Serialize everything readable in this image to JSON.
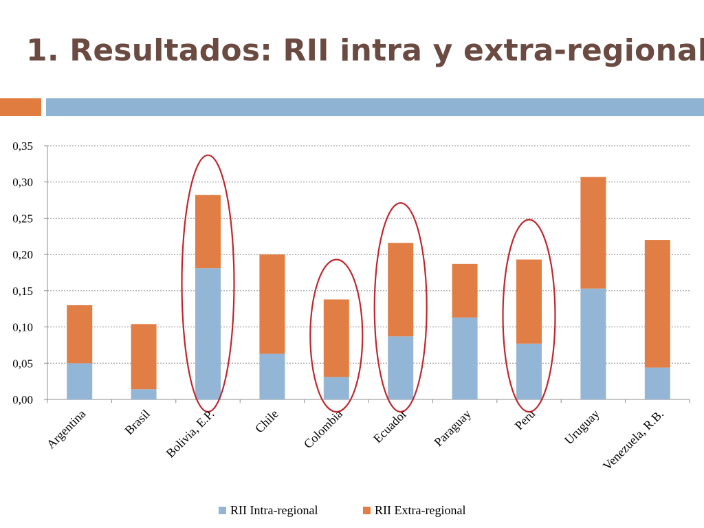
{
  "slide": {
    "title": "1. Resultados: RII intra y extra-regional"
  },
  "colors": {
    "title": "#6b4a42",
    "accent_orange": "#e07c40",
    "accent_blue": "#8fb3d3",
    "intra": "#94b6d6",
    "extra": "#e07e45",
    "highlight_ellipse": "#c0262c",
    "grid": "#8c8c8c"
  },
  "chart_data": {
    "type": "bar",
    "stacked": true,
    "categories": [
      "Argentina",
      "Brasil",
      "Bolivia, E.P.",
      "Chile",
      "Colombia",
      "Ecuador",
      "Paraguay",
      "Peru",
      "Uruguay",
      "Venezuela, R.B."
    ],
    "series": [
      {
        "name": "RII Intra-regional",
        "values": [
          0.05,
          0.014,
          0.181,
          0.063,
          0.031,
          0.087,
          0.113,
          0.077,
          0.153,
          0.044
        ]
      },
      {
        "name": "RII Extra-regional",
        "values": [
          0.08,
          0.09,
          0.101,
          0.137,
          0.107,
          0.129,
          0.074,
          0.116,
          0.154,
          0.176
        ]
      }
    ],
    "ylim": [
      0,
      0.35
    ],
    "yticks": [
      "0,00",
      "0,05",
      "0,10",
      "0,15",
      "0,20",
      "0,25",
      "0,30",
      "0,35"
    ],
    "grid": true,
    "legend_position": "bottom",
    "highlighted_categories": [
      "Bolivia, E.P.",
      "Colombia",
      "Ecuador",
      "Peru"
    ]
  }
}
